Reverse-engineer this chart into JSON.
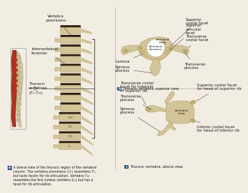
{
  "bg_color": "#f2ede3",
  "vertebra_color": "#d4c49a",
  "vertebra_dark": "#b8a870",
  "vertebra_shadow": "#9a8a50",
  "red_color": "#b03020",
  "red_light": "#c84030",
  "text_color": "#1a1a1a",
  "line_color": "#444444",
  "blue_label": "#1a4a7a",
  "font_label": 4.0,
  "font_caption": 3.5,
  "panel_a_caption": "A lateral view of the thoracic region of the vertebral\ncolumn. The vertebra prominens (C₇) resembles T₁,\nbut lacks facets for rib articulation. Vertebra T₁₂\nresembles the first lumbar vertebra (L₁) but has a\nfacet for rib articulation.",
  "panel_b_caption": "Thoracic vertebra, superior view.",
  "panel_c_caption": "Thoracic vertebra, lateral view.",
  "spine_labels": [
    "Vertebra\nprominens",
    "Intervertebral\nforamen",
    "Thoracic\nvertebrae\n(T₁–T₁₂)"
  ],
  "sup_labels": [
    "Spinous\nprocess",
    "Transverse\nprocess",
    "Lamina",
    "Transverse\ncostal facet",
    "Superior\narticular\nfacet",
    "Superior\ncostal facet",
    "Vertebral\nforamen",
    "Vertebral\nbody"
  ],
  "lat_labels": [
    "Transverse costal\nfacet for tubercle\nof superior rib",
    "Transverse\nprocess",
    "Spinous\nprocess",
    "Superior costal facet\nfor head of superior rib",
    "Vertebral\nbody",
    "Inferior costal facet\nfor head of inferior rib"
  ]
}
